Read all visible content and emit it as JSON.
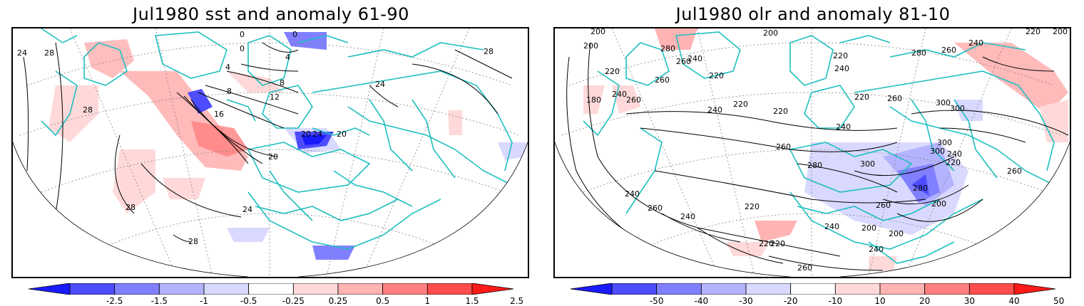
{
  "panels": [
    {
      "title": "Jul1980 sst and anomaly 61-90",
      "colorbar": {
        "tick_labels": [
          "-2.5",
          "-1.5",
          "-1",
          "-0.5",
          "-0.25",
          "0.25",
          "0.5",
          "1",
          "1.5",
          "2.5"
        ],
        "colors": [
          "#1a1aff",
          "#4d4dff",
          "#8080ff",
          "#b3b3ff",
          "#d9d9ff",
          "#ffffff",
          "#ffd9d9",
          "#ffb3b3",
          "#ff8080",
          "#ff4d4d",
          "#ff1a1a"
        ]
      },
      "contour_labels": [
        "24",
        "28",
        "0",
        "0",
        "0",
        "4",
        "4",
        "8",
        "8",
        "12",
        "16",
        "20",
        "24",
        "28",
        "28",
        "28",
        "24",
        "28",
        "20",
        "20",
        "24"
      ]
    },
    {
      "title": "Jul1980 olr and anomaly 81-10",
      "colorbar": {
        "tick_labels": [
          "-50",
          "-40",
          "-30",
          "-20",
          "-10",
          "10",
          "20",
          "30",
          "40",
          "50"
        ],
        "colors": [
          "#1a1aff",
          "#4d4dff",
          "#8080ff",
          "#b3b3ff",
          "#d9d9ff",
          "#ffffff",
          "#ffd9d9",
          "#ffb3b3",
          "#ff8080",
          "#ff4d4d",
          "#ff1a1a"
        ]
      },
      "contour_labels": [
        "200",
        "200",
        "220",
        "280",
        "240",
        "220",
        "200",
        "280",
        "260",
        "240",
        "220",
        "200",
        "260",
        "220",
        "240",
        "180",
        "240",
        "260",
        "240",
        "220",
        "220",
        "300",
        "220",
        "260",
        "300",
        "240",
        "260",
        "300",
        "300",
        "240",
        "220",
        "260",
        "280",
        "300",
        "280",
        "260",
        "200",
        "240",
        "260",
        "240",
        "220",
        "240",
        "200",
        "200",
        "220",
        "240",
        "220",
        "260",
        "260"
      ]
    }
  ],
  "colors": {
    "coastline": "#1fbfbf",
    "contour": "#000000",
    "grid": "#808080"
  }
}
